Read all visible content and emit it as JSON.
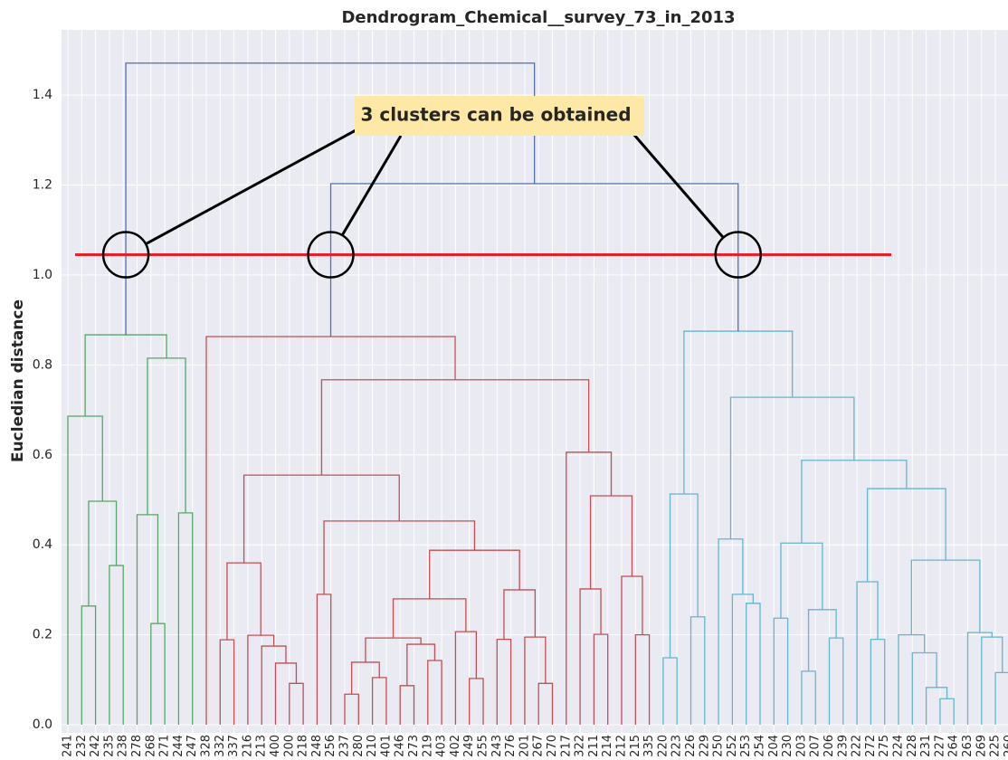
{
  "chart_data": {
    "type": "dendrogram",
    "title": "Dendrogram_Chemical__survey_73_in_2013",
    "ylabel": "Eucledian distance",
    "annotation": "3 clusters can be obtained",
    "threshold": 1.045,
    "threshold_color": "#e8202a",
    "ylim": [
      -0.018,
      1.545
    ],
    "yticks": [
      {
        "value": 0,
        "label": "0.0"
      },
      0.2,
      0.4,
      0.6,
      0.8,
      {
        "value": 1,
        "label": "1.0"
      },
      1.2,
      1.4
    ],
    "grid": true,
    "leaves": [
      "241",
      "232",
      "242",
      "235",
      "238",
      "278",
      "268",
      "271",
      "244",
      "247",
      "328",
      "332",
      "337",
      "216",
      "213",
      "400",
      "200",
      "218",
      "248",
      "256",
      "237",
      "280",
      "210",
      "401",
      "246",
      "273",
      "219",
      "403",
      "402",
      "249",
      "255",
      "243",
      "276",
      "201",
      "267",
      "270",
      "217",
      "322",
      "211",
      "214",
      "212",
      "215",
      "335",
      "220",
      "223",
      "226",
      "229",
      "250",
      "252",
      "253",
      "254",
      "204",
      "230",
      "203",
      "207",
      "206",
      "239",
      "222",
      "272",
      "275",
      "224",
      "228",
      "231",
      "227",
      "264",
      "263",
      "269",
      "225",
      "260"
    ],
    "merges": [
      {
        "left": 1,
        "right": 2,
        "height": 0.264,
        "color": "#55a868"
      },
      {
        "left": 3,
        "right": 4,
        "height": 0.354,
        "color": "#55a868"
      },
      {
        "left": 69,
        "right": 70,
        "height": 0.497,
        "color": "#55a868"
      },
      {
        "left": 0,
        "right": 71,
        "height": 0.686,
        "color": "#55a868"
      },
      {
        "left": 6,
        "right": 7,
        "height": 0.225,
        "color": "#55a868"
      },
      {
        "left": 5,
        "right": 73,
        "height": 0.467,
        "color": "#55a868"
      },
      {
        "left": 8,
        "right": 9,
        "height": 0.471,
        "color": "#55a868"
      },
      {
        "left": 74,
        "right": 75,
        "height": 0.815,
        "color": "#55a868"
      },
      {
        "left": 72,
        "right": 76,
        "height": 0.867,
        "color": "#55a868"
      },
      {
        "left": 11,
        "right": 12,
        "height": 0.189,
        "color": "#c44e52"
      },
      {
        "left": 16,
        "right": 17,
        "height": 0.092,
        "color": "#c44e52"
      },
      {
        "left": 15,
        "right": 79,
        "height": 0.137,
        "color": "#c44e52"
      },
      {
        "left": 14,
        "right": 80,
        "height": 0.175,
        "color": "#c44e52"
      },
      {
        "left": 13,
        "right": 81,
        "height": 0.199,
        "color": "#c44e52"
      },
      {
        "left": 78,
        "right": 82,
        "height": 0.36,
        "color": "#c44e52"
      },
      {
        "left": 18,
        "right": 19,
        "height": 0.29,
        "color": "#c44e52"
      },
      {
        "left": 20,
        "right": 21,
        "height": 0.068,
        "color": "#c44e52"
      },
      {
        "left": 22,
        "right": 23,
        "height": 0.105,
        "color": "#c44e52"
      },
      {
        "left": 85,
        "right": 86,
        "height": 0.139,
        "color": "#c44e52"
      },
      {
        "left": 24,
        "right": 25,
        "height": 0.087,
        "color": "#c44e52"
      },
      {
        "left": 26,
        "right": 27,
        "height": 0.143,
        "color": "#c44e52"
      },
      {
        "left": 88,
        "right": 89,
        "height": 0.179,
        "color": "#c44e52"
      },
      {
        "left": 87,
        "right": 90,
        "height": 0.193,
        "color": "#c44e52"
      },
      {
        "left": 29,
        "right": 30,
        "height": 0.103,
        "color": "#c44e52"
      },
      {
        "left": 28,
        "right": 92,
        "height": 0.207,
        "color": "#c44e52"
      },
      {
        "left": 91,
        "right": 93,
        "height": 0.28,
        "color": "#c44e52"
      },
      {
        "left": 31,
        "right": 32,
        "height": 0.19,
        "color": "#c44e52"
      },
      {
        "left": 34,
        "right": 35,
        "height": 0.092,
        "color": "#c44e52"
      },
      {
        "left": 33,
        "right": 96,
        "height": 0.195,
        "color": "#c44e52"
      },
      {
        "left": 95,
        "right": 97,
        "height": 0.3,
        "color": "#c44e52"
      },
      {
        "left": 94,
        "right": 98,
        "height": 0.388,
        "color": "#c44e52"
      },
      {
        "left": 84,
        "right": 99,
        "height": 0.453,
        "color": "#c44e52"
      },
      {
        "left": 83,
        "right": 100,
        "height": 0.555,
        "color": "#c44e52"
      },
      {
        "left": 38,
        "right": 39,
        "height": 0.201,
        "color": "#c44e52"
      },
      {
        "left": 37,
        "right": 102,
        "height": 0.302,
        "color": "#c44e52"
      },
      {
        "left": 41,
        "right": 42,
        "height": 0.2,
        "color": "#c44e52"
      },
      {
        "left": 40,
        "right": 104,
        "height": 0.33,
        "color": "#c44e52"
      },
      {
        "left": 103,
        "right": 105,
        "height": 0.509,
        "color": "#c44e52"
      },
      {
        "left": 36,
        "right": 106,
        "height": 0.606,
        "color": "#c44e52"
      },
      {
        "left": 101,
        "right": 107,
        "height": 0.767,
        "color": "#c44e52"
      },
      {
        "left": 10,
        "right": 108,
        "height": 0.863,
        "color": "#c44e52"
      },
      {
        "left": 43,
        "right": 44,
        "height": 0.149,
        "color": "#64b5cd"
      },
      {
        "left": 45,
        "right": 46,
        "height": 0.24,
        "color": "#64b5cd"
      },
      {
        "left": 110,
        "right": 111,
        "height": 0.513,
        "color": "#64b5cd"
      },
      {
        "left": 49,
        "right": 50,
        "height": 0.27,
        "color": "#64b5cd"
      },
      {
        "left": 48,
        "right": 113,
        "height": 0.29,
        "color": "#64b5cd"
      },
      {
        "left": 47,
        "right": 114,
        "height": 0.413,
        "color": "#64b5cd"
      },
      {
        "left": 51,
        "right": 52,
        "height": 0.237,
        "color": "#64b5cd"
      },
      {
        "left": 53,
        "right": 54,
        "height": 0.119,
        "color": "#64b5cd"
      },
      {
        "left": 55,
        "right": 56,
        "height": 0.193,
        "color": "#64b5cd"
      },
      {
        "left": 117,
        "right": 118,
        "height": 0.256,
        "color": "#64b5cd"
      },
      {
        "left": 116,
        "right": 119,
        "height": 0.404,
        "color": "#64b5cd"
      },
      {
        "left": 58,
        "right": 59,
        "height": 0.19,
        "color": "#64b5cd"
      },
      {
        "left": 57,
        "right": 121,
        "height": 0.318,
        "color": "#64b5cd"
      },
      {
        "left": 63,
        "right": 64,
        "height": 0.058,
        "color": "#64b5cd"
      },
      {
        "left": 62,
        "right": 123,
        "height": 0.083,
        "color": "#64b5cd"
      },
      {
        "left": 61,
        "right": 124,
        "height": 0.16,
        "color": "#64b5cd"
      },
      {
        "left": 60,
        "right": 125,
        "height": 0.2,
        "color": "#64b5cd"
      },
      {
        "left": 67,
        "right": 68,
        "height": 0.116,
        "color": "#64b5cd"
      },
      {
        "left": 66,
        "right": 127,
        "height": 0.195,
        "color": "#64b5cd"
      },
      {
        "left": 65,
        "right": 128,
        "height": 0.205,
        "color": "#64b5cd"
      },
      {
        "left": 126,
        "right": 129,
        "height": 0.366,
        "color": "#64b5cd"
      },
      {
        "left": 122,
        "right": 130,
        "height": 0.525,
        "color": "#64b5cd"
      },
      {
        "left": 120,
        "right": 131,
        "height": 0.588,
        "color": "#64b5cd"
      },
      {
        "left": 115,
        "right": 132,
        "height": 0.728,
        "color": "#64b5cd"
      },
      {
        "left": 112,
        "right": 133,
        "height": 0.875,
        "color": "#64b5cd"
      },
      {
        "left": 109,
        "right": 134,
        "height": 1.203,
        "color": "#4c72b0"
      },
      {
        "left": 77,
        "right": 135,
        "height": 1.471,
        "color": "#4c72b0"
      }
    ]
  }
}
